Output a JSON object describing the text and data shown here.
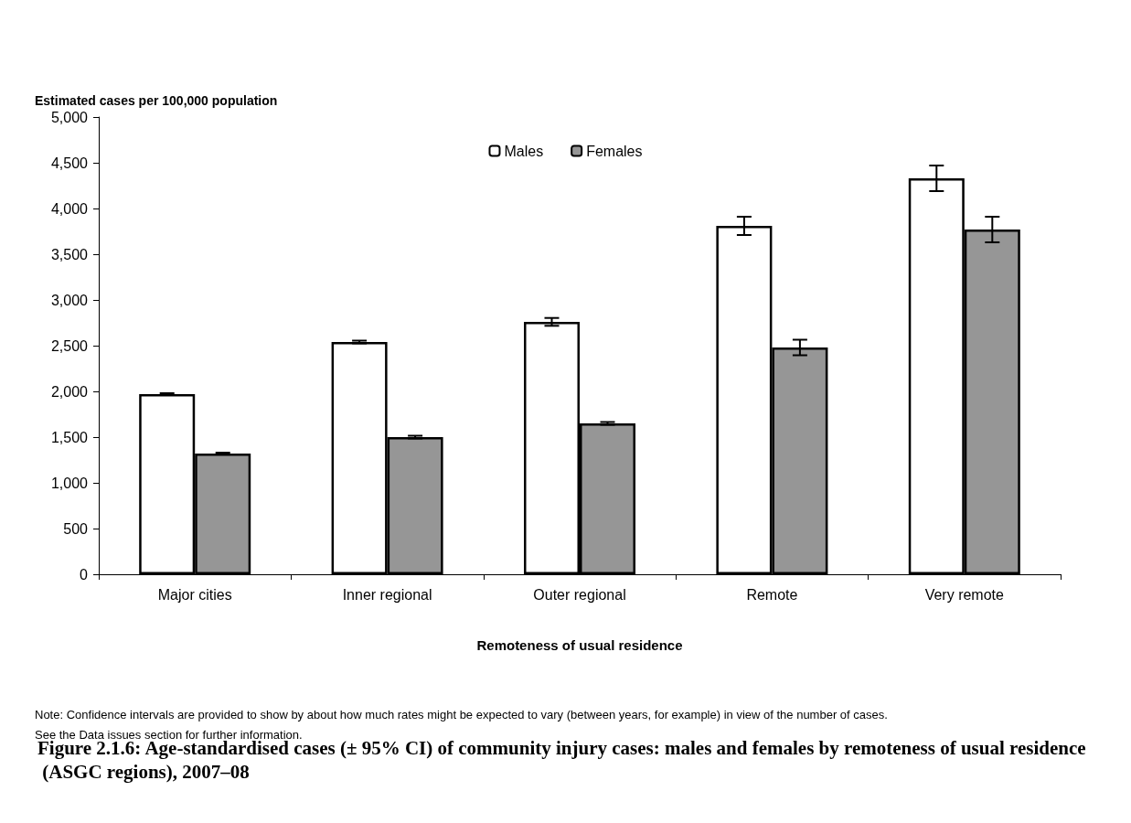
{
  "chart_data": {
    "type": "bar",
    "title": "Figure 2.1.6: Age-standardised cases (± 95% CI) of community injury cases: males and females by remoteness of usual residence (ASGC regions), 2007–08",
    "ylabel": "Estimated cases per 100,000 population",
    "xlabel": "Remoteness of usual residence",
    "categories": [
      "Major cities",
      "Inner regional",
      "Outer regional",
      "Remote",
      "Very remote"
    ],
    "series": [
      {
        "name": "Males",
        "color": "#ffffff",
        "values": [
          1970,
          2540,
          2760,
          3810,
          4330
        ],
        "errors": [
          10,
          15,
          43,
          100,
          140
        ]
      },
      {
        "name": "Females",
        "color": "#969696",
        "values": [
          1320,
          1500,
          1650,
          2480,
          3770
        ],
        "errors": [
          10,
          15,
          15,
          85,
          140
        ]
      }
    ],
    "ylim": [
      0,
      5000
    ],
    "yticks": [
      {
        "value": 0,
        "label": "0"
      },
      {
        "value": 500,
        "label": "500"
      },
      {
        "value": 1000,
        "label": "1,000"
      },
      {
        "value": 1500,
        "label": "1,500"
      },
      {
        "value": 2000,
        "label": "2,000"
      },
      {
        "value": 2500,
        "label": "2,500"
      },
      {
        "value": 3000,
        "label": "3,000"
      },
      {
        "value": 3500,
        "label": "3,500"
      },
      {
        "value": 4000,
        "label": "4,000"
      },
      {
        "value": 4500,
        "label": "4,500"
      },
      {
        "value": 5000,
        "label": "5,000"
      }
    ],
    "grid": false,
    "legend": "top",
    "annotations": [
      "Note: Confidence intervals are provided to show by about how much rates might be expected to vary (between years, for example) in view of the number of cases. See the Data issues section for further information."
    ]
  }
}
